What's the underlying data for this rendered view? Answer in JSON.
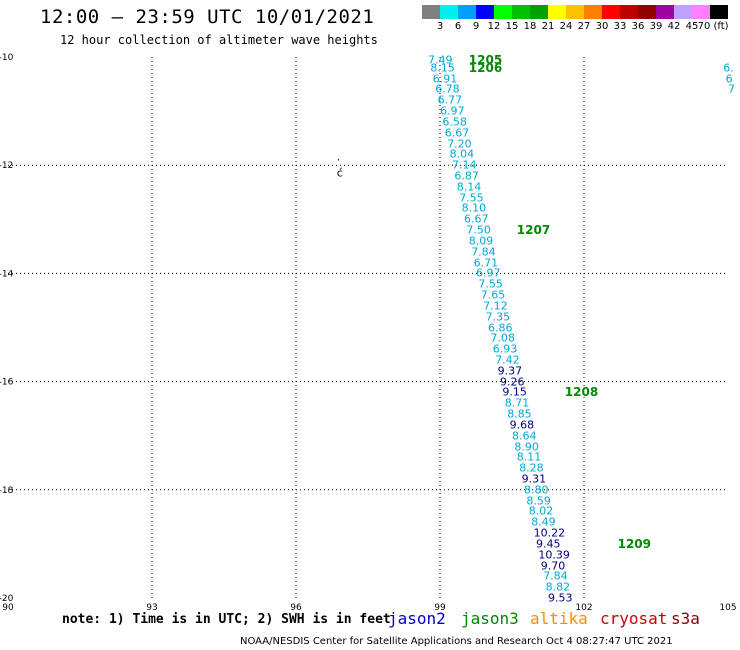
{
  "title": "12:00 – 23:59 UTC 10/01/2021",
  "subtitle": "12 hour collection of altimeter wave heights",
  "colorbar": {
    "colors": [
      "#808080",
      "#00f0f0",
      "#00a0ff",
      "#0000ff",
      "#00ff00",
      "#00c000",
      "#00a000",
      "#ffff00",
      "#ffc000",
      "#ff8000",
      "#ff0000",
      "#c00000",
      "#900000",
      "#a000a0",
      "#c0a0ff",
      "#ff80ff",
      "#000000"
    ],
    "labels": [
      "3",
      "6",
      "9",
      "12",
      "15",
      "18",
      "21",
      "24",
      "27",
      "30",
      "33",
      "36",
      "39",
      "42",
      "45",
      "70 (ft)"
    ]
  },
  "map": {
    "lon_range": [
      90,
      105
    ],
    "lat_range": [
      -20,
      -10
    ],
    "x_ticks": [
      "90",
      "93",
      "96",
      "99",
      "102",
      "105"
    ],
    "y_ticks": [
      "-10",
      "-12",
      "-14",
      "-16",
      "-18",
      "-20"
    ],
    "grid": "dotted"
  },
  "satellite_colors": {
    "jason2": "#0000cc",
    "jason3": "#008800",
    "altika": "#ff8c00",
    "cryosat": "#cc0000",
    "s3a": "#8b0000",
    "cyan": "#00a8d8",
    "navy": "#000080"
  },
  "track_points": [
    {
      "lat": -10.05,
      "lon": 98.75,
      "v": "7.49",
      "c": "cyan"
    },
    {
      "lat": -10.2,
      "lon": 98.8,
      "v": "8.15",
      "c": "cyan"
    },
    {
      "lat": -10.4,
      "lon": 98.85,
      "v": "6.91",
      "c": "cyan"
    },
    {
      "lat": -10.6,
      "lon": 98.9,
      "v": "6.78",
      "c": "cyan"
    },
    {
      "lat": -10.8,
      "lon": 98.95,
      "v": "6.77",
      "c": "cyan"
    },
    {
      "lat": -11.0,
      "lon": 99.0,
      "v": "6.97",
      "c": "cyan"
    },
    {
      "lat": -11.2,
      "lon": 99.05,
      "v": "6.58",
      "c": "cyan"
    },
    {
      "lat": -11.4,
      "lon": 99.1,
      "v": "6.67",
      "c": "cyan"
    },
    {
      "lat": -11.6,
      "lon": 99.15,
      "v": "7.20",
      "c": "cyan"
    },
    {
      "lat": -11.8,
      "lon": 99.2,
      "v": "8.04",
      "c": "cyan"
    },
    {
      "lat": -12.0,
      "lon": 99.25,
      "v": "7.14",
      "c": "cyan"
    },
    {
      "lat": -12.2,
      "lon": 99.3,
      "v": "6.87",
      "c": "cyan"
    },
    {
      "lat": -12.4,
      "lon": 99.35,
      "v": "8.14",
      "c": "cyan"
    },
    {
      "lat": -12.6,
      "lon": 99.4,
      "v": "7.55",
      "c": "cyan"
    },
    {
      "lat": -12.8,
      "lon": 99.45,
      "v": "8.10",
      "c": "cyan"
    },
    {
      "lat": -13.0,
      "lon": 99.5,
      "v": "6.67",
      "c": "cyan"
    },
    {
      "lat": -13.2,
      "lon": 99.55,
      "v": "7.50",
      "c": "cyan"
    },
    {
      "lat": -13.4,
      "lon": 99.6,
      "v": "8.09",
      "c": "cyan"
    },
    {
      "lat": -13.6,
      "lon": 99.65,
      "v": "7.84",
      "c": "cyan"
    },
    {
      "lat": -13.8,
      "lon": 99.7,
      "v": "6.71",
      "c": "cyan"
    },
    {
      "lat": -14.0,
      "lon": 99.75,
      "v": "6.97",
      "c": "cyan"
    },
    {
      "lat": -14.2,
      "lon": 99.8,
      "v": "7.55",
      "c": "cyan"
    },
    {
      "lat": -14.4,
      "lon": 99.85,
      "v": "7.65",
      "c": "cyan"
    },
    {
      "lat": -14.6,
      "lon": 99.9,
      "v": "7.12",
      "c": "cyan"
    },
    {
      "lat": -14.8,
      "lon": 99.95,
      "v": "7.35",
      "c": "cyan"
    },
    {
      "lat": -15.0,
      "lon": 100.0,
      "v": "6.86",
      "c": "cyan"
    },
    {
      "lat": -15.2,
      "lon": 100.05,
      "v": "7.08",
      "c": "cyan"
    },
    {
      "lat": -15.4,
      "lon": 100.1,
      "v": "6.93",
      "c": "cyan"
    },
    {
      "lat": -15.6,
      "lon": 100.15,
      "v": "7.42",
      "c": "cyan"
    },
    {
      "lat": -15.8,
      "lon": 100.2,
      "v": "9.37",
      "c": "navy"
    },
    {
      "lat": -16.0,
      "lon": 100.25,
      "v": "9.26",
      "c": "navy"
    },
    {
      "lat": -16.2,
      "lon": 100.3,
      "v": "9.15",
      "c": "navy"
    },
    {
      "lat": -16.4,
      "lon": 100.35,
      "v": "8.71",
      "c": "cyan"
    },
    {
      "lat": -16.6,
      "lon": 100.4,
      "v": "8.85",
      "c": "cyan"
    },
    {
      "lat": -16.8,
      "lon": 100.45,
      "v": "9.68",
      "c": "navy"
    },
    {
      "lat": -17.0,
      "lon": 100.5,
      "v": "8.64",
      "c": "cyan"
    },
    {
      "lat": -17.2,
      "lon": 100.55,
      "v": "8.90",
      "c": "cyan"
    },
    {
      "lat": -17.4,
      "lon": 100.6,
      "v": "8.11",
      "c": "cyan"
    },
    {
      "lat": -17.6,
      "lon": 100.65,
      "v": "8.28",
      "c": "cyan"
    },
    {
      "lat": -17.8,
      "lon": 100.7,
      "v": "9.31",
      "c": "navy"
    },
    {
      "lat": -18.0,
      "lon": 100.75,
      "v": "8.80",
      "c": "cyan"
    },
    {
      "lat": -18.2,
      "lon": 100.8,
      "v": "8.59",
      "c": "cyan"
    },
    {
      "lat": -18.4,
      "lon": 100.85,
      "v": "8.02",
      "c": "cyan"
    },
    {
      "lat": -18.6,
      "lon": 100.9,
      "v": "8.49",
      "c": "cyan"
    },
    {
      "lat": -18.8,
      "lon": 100.95,
      "v": "10.22",
      "c": "navy"
    },
    {
      "lat": -19.0,
      "lon": 101.0,
      "v": "9.45",
      "c": "navy"
    },
    {
      "lat": -19.2,
      "lon": 101.05,
      "v": "10.39",
      "c": "navy"
    },
    {
      "lat": -19.4,
      "lon": 101.1,
      "v": "9.70",
      "c": "navy"
    },
    {
      "lat": -19.6,
      "lon": 101.15,
      "v": "7.84",
      "c": "cyan"
    },
    {
      "lat": -19.8,
      "lon": 101.2,
      "v": "8.82",
      "c": "cyan"
    },
    {
      "lat": -20.0,
      "lon": 101.25,
      "v": "9.53",
      "c": "navy"
    }
  ],
  "track_times": [
    {
      "lat": -10.05,
      "lon": 99.6,
      "v": "1205"
    },
    {
      "lat": -10.2,
      "lon": 99.6,
      "v": "1206"
    },
    {
      "lat": -13.2,
      "lon": 100.6,
      "v": "1207"
    },
    {
      "lat": -16.2,
      "lon": 101.6,
      "v": "1208"
    },
    {
      "lat": -19.0,
      "lon": 102.7,
      "v": "1209"
    }
  ],
  "edge_points": [
    {
      "lat": -10.2,
      "lon": 104.9,
      "v": "6.",
      "c": "cyan"
    },
    {
      "lat": -10.4,
      "lon": 104.95,
      "v": "6",
      "c": "cyan"
    },
    {
      "lat": -10.6,
      "lon": 105.0,
      "v": "7",
      "c": "cyan"
    },
    {
      "lat": -10.8,
      "lon": 105.0,
      "v": "",
      "c": "cyan"
    }
  ],
  "island_marks": [
    {
      "lat": -11.85,
      "lon": 96.85,
      "v": "."
    },
    {
      "lat": -12.15,
      "lon": 96.85,
      "v": "ć"
    }
  ],
  "note": "note: 1) Time is in UTC; 2) SWH is in feet",
  "satellites": [
    {
      "name": "jason2",
      "key": "jason2"
    },
    {
      "name": "jason3",
      "key": "jason3"
    },
    {
      "name": "altika",
      "key": "altika"
    },
    {
      "name": "cryosat",
      "key": "cryosat"
    },
    {
      "name": "s3a",
      "key": "s3a"
    }
  ],
  "credit": "NOAA/NESDIS Center for Satellite Applications and Research    Oct  4 08:27:47 UTC 2021"
}
